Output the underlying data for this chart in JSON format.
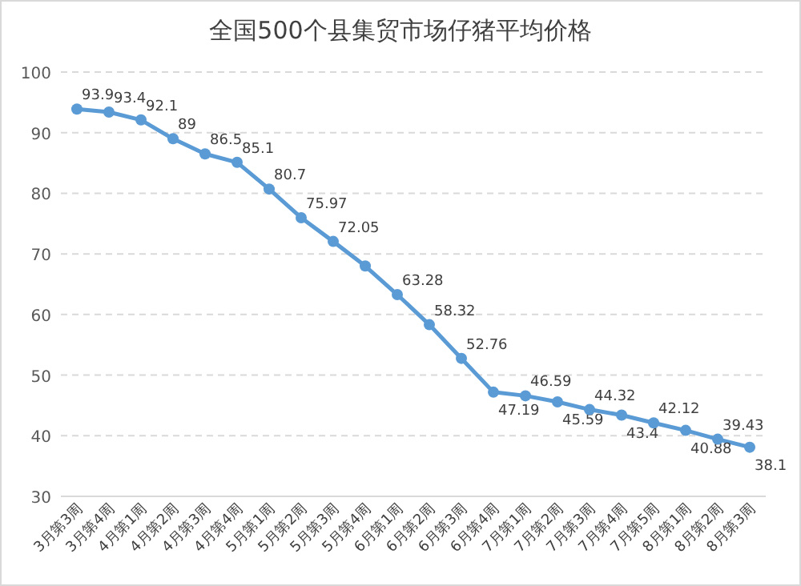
{
  "chart_data": {
    "type": "line",
    "title": "全国500个县集贸市场仔猪平均价格",
    "categories": [
      "3月第3周",
      "3月第4周",
      "4月第1周",
      "4月第2周",
      "4月第3周",
      "4月第4周",
      "5月第1周",
      "5月第2周",
      "5月第3周",
      "5月第4周",
      "6月第1周",
      "6月第2周",
      "6月第3周",
      "6月第4周",
      "7月第1周",
      "7月第2周",
      "7月第3周",
      "7月第4周",
      "7月第5周",
      "8月第1周",
      "8月第2周",
      "8月第3周"
    ],
    "series": [
      {
        "color": "#5b9bd5",
        "values": [
          93.9,
          93.4,
          92.1,
          89,
          86.5,
          85.1,
          80.7,
          75.97,
          72.05,
          68,
          63.28,
          58.32,
          52.76,
          47.19,
          46.59,
          45.59,
          44.32,
          43.4,
          42.12,
          40.88,
          39.43,
          38.1
        ],
        "value_labels": [
          "93.9",
          "93.4",
          "92.1",
          "89",
          "86.5",
          "85.1",
          "80.7",
          "75.97",
          "72.05",
          null,
          "63.28",
          "58.32",
          "52.76",
          "47.19",
          "46.59",
          "45.59",
          "44.32",
          "43.4",
          "42.12",
          "40.88",
          "39.43",
          "38.1"
        ]
      }
    ],
    "ylim": [
      30,
      100
    ],
    "yticks": [
      30,
      40,
      50,
      60,
      70,
      80,
      90,
      100
    ],
    "grid": "y",
    "marker": "circle",
    "line_style": "solid",
    "legend": false
  }
}
